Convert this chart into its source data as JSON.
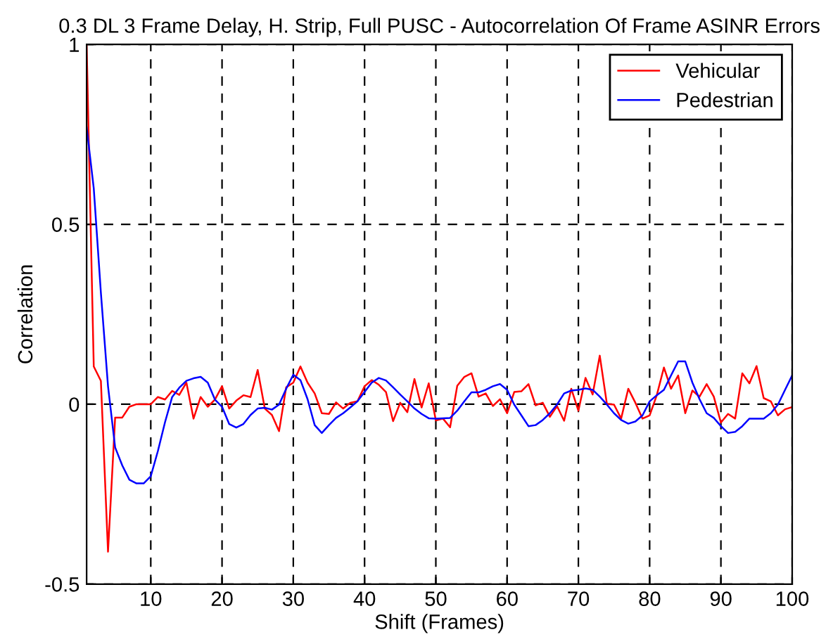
{
  "chart_data": {
    "type": "line",
    "title": "0.3 DL 3 Frame Delay, H. Strip, Full PUSC - Autocorrelation Of Frame ASINR Errors",
    "xlabel": "Shift (Frames)",
    "ylabel": "Correlation",
    "x": [
      1,
      2,
      3,
      4,
      5,
      6,
      7,
      8,
      9,
      10,
      11,
      12,
      13,
      14,
      15,
      16,
      17,
      18,
      19,
      20,
      21,
      22,
      23,
      24,
      25,
      26,
      27,
      28,
      29,
      30,
      31,
      32,
      33,
      34,
      35,
      36,
      37,
      38,
      39,
      40,
      41,
      42,
      43,
      44,
      45,
      46,
      47,
      48,
      49,
      50,
      51,
      52,
      53,
      54,
      55,
      56,
      57,
      58,
      59,
      60,
      61,
      62,
      63,
      64,
      65,
      66,
      67,
      68,
      69,
      70,
      71,
      72,
      73,
      74,
      75,
      76,
      77,
      78,
      79,
      80,
      81,
      82,
      83,
      84,
      85,
      86,
      87,
      88,
      89,
      90,
      91,
      92,
      93,
      94,
      95,
      96,
      97,
      98,
      99,
      100
    ],
    "series": [
      {
        "name": "Vehicular",
        "color": "#ff0000",
        "values": [
          1.0,
          0.105,
          0.065,
          -0.41,
          -0.037,
          -0.037,
          -0.007,
          0.0,
          0.0,
          0.0,
          0.02,
          0.013,
          0.037,
          0.026,
          0.06,
          -0.04,
          0.02,
          -0.007,
          0.013,
          0.05,
          -0.012,
          0.01,
          0.025,
          0.02,
          0.095,
          -0.012,
          -0.03,
          -0.075,
          0.047,
          0.06,
          0.105,
          0.06,
          0.03,
          -0.025,
          -0.027,
          0.005,
          -0.012,
          0.004,
          0.008,
          0.05,
          0.067,
          0.054,
          0.034,
          -0.047,
          0.004,
          -0.022,
          0.07,
          -0.009,
          0.058,
          -0.045,
          -0.04,
          -0.064,
          0.051,
          0.076,
          0.086,
          0.021,
          0.03,
          -0.005,
          0.014,
          -0.025,
          0.034,
          0.036,
          0.056,
          -0.003,
          0.004,
          -0.035,
          -0.005,
          -0.046,
          0.043,
          -0.018,
          0.073,
          0.027,
          0.135,
          0.001,
          -0.001,
          -0.04,
          0.043,
          0.004,
          -0.04,
          -0.031,
          0.025,
          0.102,
          0.043,
          0.08,
          -0.025,
          0.038,
          0.021,
          0.056,
          0.021,
          -0.051,
          -0.027,
          -0.04,
          0.086,
          0.058,
          0.106,
          0.017,
          0.008,
          -0.031,
          -0.014,
          -0.008
        ]
      },
      {
        "name": "Pedestrian",
        "color": "#0000ff",
        "values": [
          0.77,
          0.6,
          0.31,
          0.05,
          -0.12,
          -0.17,
          -0.21,
          -0.22,
          -0.22,
          -0.2,
          -0.13,
          -0.05,
          0.02,
          0.046,
          0.065,
          0.072,
          0.076,
          0.06,
          0.013,
          -0.007,
          -0.055,
          -0.065,
          -0.055,
          -0.03,
          -0.012,
          -0.01,
          -0.015,
          -0.001,
          0.043,
          0.082,
          0.067,
          0.014,
          -0.058,
          -0.08,
          -0.058,
          -0.038,
          -0.025,
          -0.009,
          0.008,
          0.034,
          0.06,
          0.073,
          0.066,
          0.047,
          0.027,
          0.008,
          -0.012,
          -0.027,
          -0.039,
          -0.04,
          -0.039,
          -0.038,
          -0.018,
          0.008,
          0.033,
          0.033,
          0.04,
          0.05,
          0.056,
          0.04,
          -0.001,
          -0.031,
          -0.061,
          -0.058,
          -0.044,
          -0.025,
          -0.001,
          0.03,
          0.038,
          0.04,
          0.044,
          0.04,
          0.021,
          -0.001,
          -0.025,
          -0.044,
          -0.054,
          -0.048,
          -0.031,
          0.008,
          0.025,
          0.04,
          0.08,
          0.119,
          0.119,
          0.06,
          0.014,
          -0.025,
          -0.038,
          -0.061,
          -0.08,
          -0.077,
          -0.061,
          -0.04,
          -0.04,
          -0.04,
          -0.025,
          -0.001,
          0.04,
          0.08
        ]
      }
    ],
    "xlim": [
      1,
      100
    ],
    "ylim": [
      -0.5,
      1
    ],
    "xticks": [
      10,
      20,
      30,
      40,
      50,
      60,
      70,
      80,
      90,
      100
    ],
    "yticks": [
      -0.5,
      0,
      0.5,
      1
    ],
    "grid": true,
    "legend": "top right",
    "marker": "none",
    "line_style": "solid"
  }
}
